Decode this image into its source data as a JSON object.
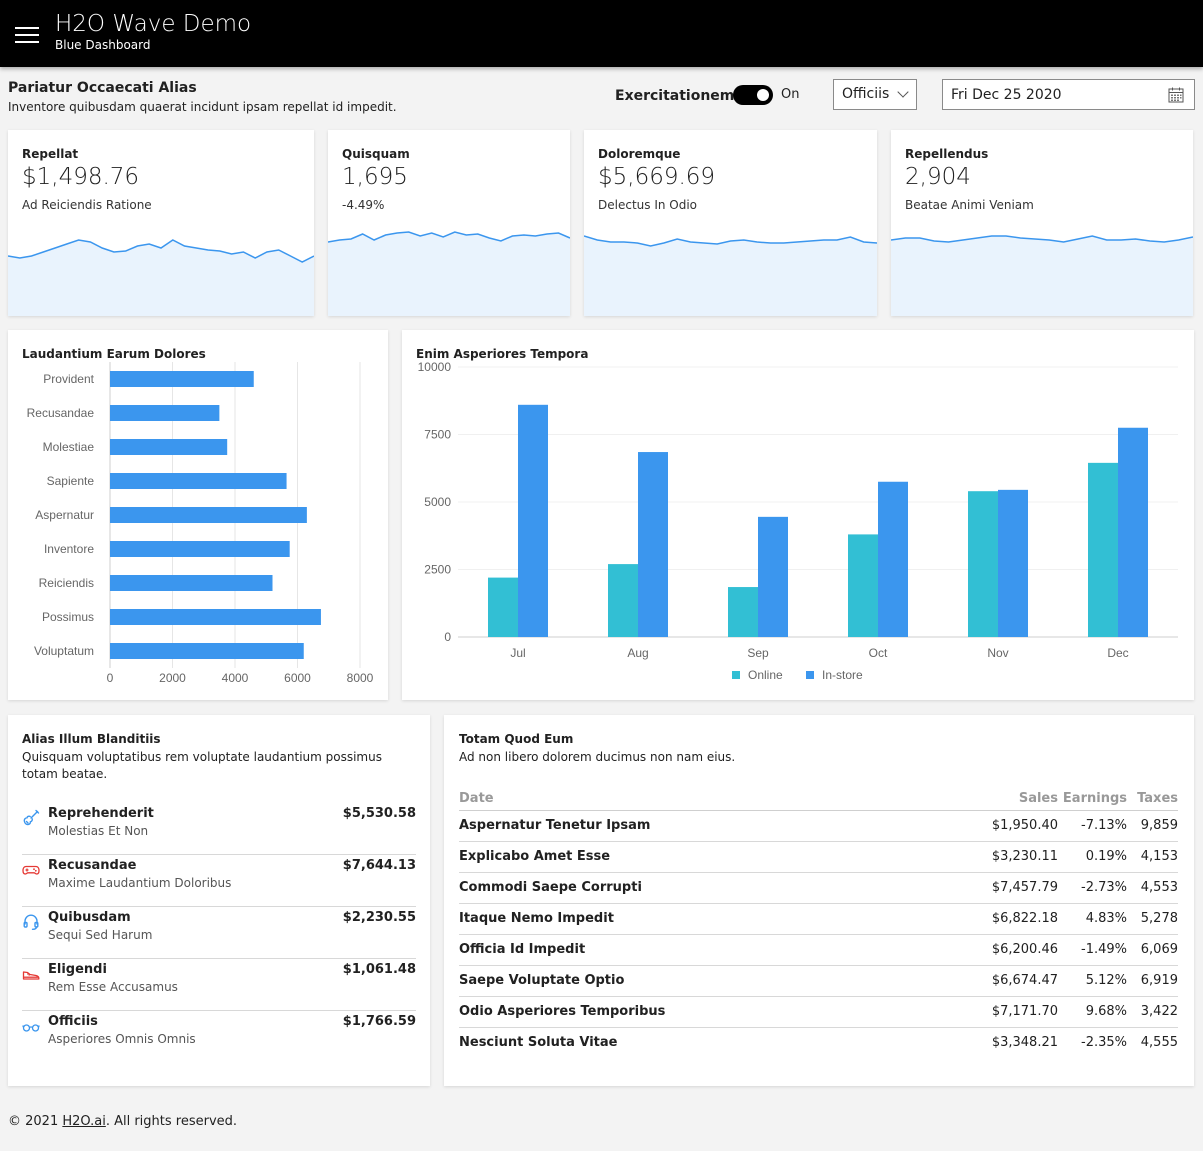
{
  "header": {
    "title": "H2O Wave Demo",
    "subtitle": "Blue Dashboard",
    "menu_icon": "hamburger-icon"
  },
  "section": {
    "title": "Pariatur Occaecati Alias",
    "subtitle": "Inventore quibusdam quaerat incidunt ipsam repellat id impedit.",
    "toggle_label": "Exercitationem",
    "toggle_state": "On",
    "dropdown_value": "Officiis",
    "date_value": "Fri Dec 25 2020"
  },
  "stats": [
    {
      "title": "Repellat",
      "value": "$1,498.76",
      "aux": "Ad Reiciendis Ratione",
      "spark": [
        30,
        32,
        30,
        26,
        22,
        18,
        14,
        16,
        22,
        26,
        25,
        20,
        18,
        22,
        14,
        20,
        22,
        24,
        25,
        28,
        26,
        32,
        26,
        24,
        30,
        36,
        30
      ]
    },
    {
      "title": "Quisquam",
      "value": "1,695",
      "aux": "-4.49%",
      "spark": [
        16,
        14,
        13,
        8,
        14,
        9,
        7,
        6,
        10,
        7,
        11,
        6,
        9,
        8,
        12,
        15,
        10,
        9,
        10,
        8,
        7,
        12
      ]
    },
    {
      "title": "Doloremque",
      "value": "$5,669.69",
      "aux": "Delectus In Odio",
      "spark": [
        10,
        14,
        16,
        16,
        17,
        20,
        17,
        13,
        16,
        17,
        18,
        15,
        14,
        16,
        17,
        17,
        16,
        15,
        14,
        14,
        11,
        16,
        17
      ]
    },
    {
      "title": "Repellendus",
      "value": "2,904",
      "aux": "Beatae Animi Veniam",
      "spark": [
        14,
        12,
        12,
        15,
        16,
        14,
        12,
        10,
        10,
        12,
        13,
        14,
        16,
        13,
        10,
        14,
        14,
        13,
        15,
        16,
        14,
        11
      ]
    }
  ],
  "hbar_card": {
    "title": "Laudantium Earum Dolores",
    "chart_data": {
      "type": "bar",
      "orientation": "horizontal",
      "categories": [
        "Provident",
        "Recusandae",
        "Molestiae",
        "Sapiente",
        "Aspernatur",
        "Inventore",
        "Reiciendis",
        "Possimus",
        "Voluptatum"
      ],
      "values": [
        4600,
        3500,
        3750,
        5650,
        6300,
        5750,
        5200,
        6750,
        6200
      ],
      "xlim": [
        0,
        8000
      ],
      "xticks": [
        0,
        2000,
        4000,
        6000,
        8000
      ],
      "color": "#3b96ee"
    }
  },
  "vbar_card": {
    "title": "Enim Asperiores Tempora",
    "chart_data": {
      "type": "bar",
      "categories": [
        "Jul",
        "Aug",
        "Sep",
        "Oct",
        "Nov",
        "Dec"
      ],
      "series": [
        {
          "name": "Online",
          "color": "#32bfd4",
          "values": [
            2200,
            2700,
            1850,
            3800,
            5400,
            6450
          ]
        },
        {
          "name": "In-store",
          "color": "#3b96ee",
          "values": [
            8600,
            6850,
            4450,
            5750,
            5450,
            7750
          ]
        }
      ],
      "ylim": [
        0,
        10000
      ],
      "yticks": [
        0,
        2500,
        5000,
        7500,
        10000
      ]
    }
  },
  "list_card": {
    "title": "Alias Illum Blanditiis",
    "subtitle": "Quisquam voluptatibus rem voluptate laudantium possimus totam beatae.",
    "items": [
      {
        "title": "Reprehenderit",
        "caption": "Molestias Et Non",
        "value": "$5,530.58",
        "icon": "guitar-icon",
        "color": "#3b96ee"
      },
      {
        "title": "Recusandae",
        "caption": "Maxime Laudantium Doloribus",
        "value": "$7,644.13",
        "icon": "game-controller-icon",
        "color": "#e53935"
      },
      {
        "title": "Quibusdam",
        "caption": "Sequi Sed Harum",
        "value": "$2,230.55",
        "icon": "headset-icon",
        "color": "#3b96ee"
      },
      {
        "title": "Eligendi",
        "caption": "Rem Esse Accusamus",
        "value": "$1,061.48",
        "icon": "shoe-icon",
        "color": "#e53935"
      },
      {
        "title": "Officiis",
        "caption": "Asperiores Omnis Omnis",
        "value": "$1,766.59",
        "icon": "glasses-icon",
        "color": "#3b96ee"
      }
    ]
  },
  "table_card": {
    "title": "Totam Quod Eum",
    "subtitle": "Ad non libero dolorem ducimus non nam eius.",
    "columns": [
      "Date",
      "Sales",
      "Earnings",
      "Taxes"
    ],
    "rows": [
      [
        "Aspernatur Tenetur Ipsam",
        "$1,950.40",
        "-7.13%",
        "9,859"
      ],
      [
        "Explicabo Amet Esse",
        "$3,230.11",
        "0.19%",
        "4,153"
      ],
      [
        "Commodi Saepe Corrupti",
        "$7,457.79",
        "-2.73%",
        "4,553"
      ],
      [
        "Itaque Nemo Impedit",
        "$6,822.18",
        "4.83%",
        "5,278"
      ],
      [
        "Officia Id Impedit",
        "$6,200.46",
        "-1.49%",
        "6,069"
      ],
      [
        "Saepe Voluptate Optio",
        "$6,674.47",
        "5.12%",
        "6,919"
      ],
      [
        "Odio Asperiores Temporibus",
        "$7,171.70",
        "9.68%",
        "3,422"
      ],
      [
        "Nesciunt Soluta Vitae",
        "$3,348.21",
        "-2.35%",
        "4,555"
      ]
    ]
  },
  "footer": {
    "prefix": "© 2021 ",
    "link": "H2O.ai",
    "suffix": ". All rights reserved."
  },
  "colors": {
    "accent": "#3b96ee",
    "accent_light": "#e9f3fd",
    "teal": "#32bfd4",
    "header_bg": "#000000"
  }
}
